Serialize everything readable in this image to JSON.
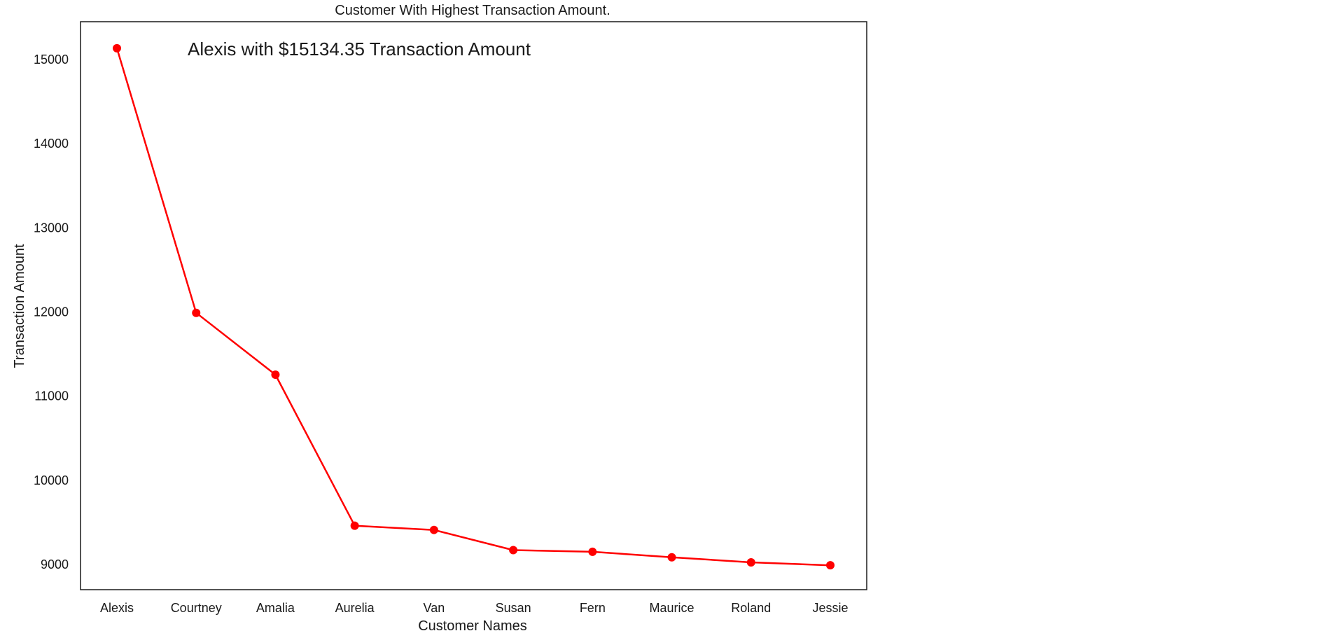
{
  "chart_data": {
    "type": "line",
    "title": "Customer With Highest Transaction Amount.",
    "xlabel": "Customer Names",
    "ylabel": "Transaction Amount",
    "categories": [
      "Alexis",
      "Courtney",
      "Amalia",
      "Aurelia",
      "Van",
      "Susan",
      "Fern",
      "Maurice",
      "Roland",
      "Jessie"
    ],
    "series": [
      {
        "values": [
          15134.35,
          11990,
          11255,
          9460,
          9410,
          9170,
          9150,
          9085,
          9025,
          8990
        ],
        "color": "#ff0000"
      }
    ],
    "yticks": [
      9000,
      10000,
      11000,
      12000,
      13000,
      14000,
      15000
    ],
    "ylim": [
      8700,
      15450
    ],
    "grid": false,
    "annotation": {
      "text": "Alexis with $15134.35 Transaction Amount",
      "color": "#008000"
    }
  }
}
